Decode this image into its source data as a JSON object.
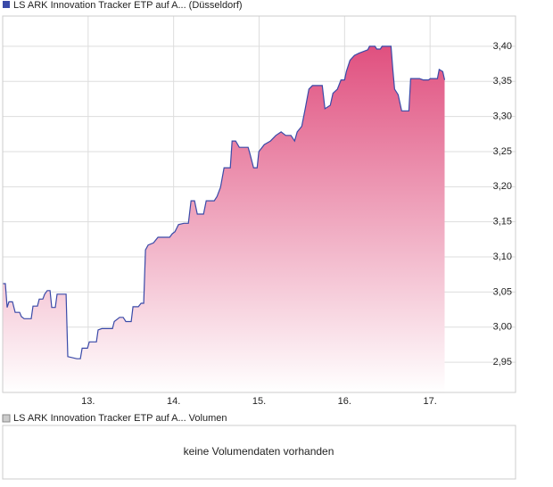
{
  "chart_data": {
    "type": "area",
    "xlim": [
      12,
      18
    ],
    "xticks": [
      {
        "value": 13,
        "label": "13."
      },
      {
        "value": 14,
        "label": "14."
      },
      {
        "value": 15,
        "label": "15."
      },
      {
        "value": 16,
        "label": "16."
      },
      {
        "value": 17,
        "label": "17."
      }
    ],
    "ylim": [
      2.907,
      3.443
    ],
    "yticks": [
      {
        "value": 2.95,
        "label": "2,95"
      },
      {
        "value": 3.0,
        "label": "3,00"
      },
      {
        "value": 3.05,
        "label": "3,05"
      },
      {
        "value": 3.1,
        "label": "3,10"
      },
      {
        "value": 3.15,
        "label": "3,15"
      },
      {
        "value": 3.2,
        "label": "3,20"
      },
      {
        "value": 3.25,
        "label": "3,25"
      },
      {
        "value": 3.3,
        "label": "3,30"
      },
      {
        "value": 3.35,
        "label": "3,35"
      },
      {
        "value": 3.4,
        "label": "3,40"
      }
    ],
    "grid": true,
    "x": [
      12.0,
      12.031,
      12.052,
      12.073,
      12.115,
      12.146,
      12.198,
      12.219,
      12.251,
      12.334,
      12.355,
      12.407,
      12.428,
      12.47,
      12.491,
      12.522,
      12.554,
      12.574,
      12.616,
      12.637,
      12.742,
      12.762,
      12.867,
      12.909,
      12.93,
      12.992,
      13.013,
      13.097,
      13.117,
      13.159,
      13.285,
      13.305,
      13.368,
      13.41,
      13.441,
      13.504,
      13.525,
      13.587,
      13.619,
      13.65,
      13.671,
      13.702,
      13.765,
      13.817,
      13.953,
      13.984,
      14.016,
      14.057,
      14.12,
      14.172,
      14.204,
      14.245,
      14.277,
      14.35,
      14.381,
      14.475,
      14.507,
      14.548,
      14.59,
      14.663,
      14.684,
      14.726,
      14.768,
      14.872,
      14.893,
      14.935,
      14.977,
      14.997,
      15.06,
      15.133,
      15.196,
      15.258,
      15.311,
      15.373,
      15.415,
      15.446,
      15.499,
      15.54,
      15.582,
      15.624,
      15.739,
      15.77,
      15.833,
      15.864,
      15.916,
      15.958,
      16.0,
      16.021,
      16.063,
      16.115,
      16.167,
      16.272,
      16.292,
      16.355,
      16.376,
      16.418,
      16.439,
      16.543,
      16.564,
      16.585,
      16.627,
      16.668,
      16.752,
      16.773,
      16.877,
      16.919,
      16.982,
      17.003,
      17.086,
      17.107,
      17.149,
      17.17
    ],
    "series": [
      {
        "name": "LS ARK Innovation Tracker ETP auf A... (Düsseldorf)",
        "color": "#3a4aa8",
        "values": [
          3.062,
          3.062,
          3.028,
          3.036,
          3.036,
          3.021,
          3.021,
          3.015,
          3.012,
          3.012,
          3.03,
          3.03,
          3.04,
          3.04,
          3.047,
          3.052,
          3.052,
          3.028,
          3.028,
          3.047,
          3.047,
          2.958,
          2.955,
          2.955,
          2.97,
          2.97,
          2.979,
          2.979,
          2.996,
          2.998,
          2.998,
          3.008,
          3.014,
          3.014,
          3.008,
          3.008,
          3.029,
          3.029,
          3.034,
          3.034,
          3.11,
          3.117,
          3.12,
          3.128,
          3.128,
          3.133,
          3.136,
          3.146,
          3.148,
          3.148,
          3.18,
          3.18,
          3.161,
          3.161,
          3.18,
          3.18,
          3.186,
          3.199,
          3.227,
          3.227,
          3.265,
          3.265,
          3.256,
          3.256,
          3.247,
          3.227,
          3.227,
          3.25,
          3.26,
          3.265,
          3.273,
          3.278,
          3.273,
          3.273,
          3.265,
          3.278,
          3.286,
          3.311,
          3.339,
          3.344,
          3.344,
          3.311,
          3.316,
          3.333,
          3.339,
          3.352,
          3.352,
          3.364,
          3.38,
          3.387,
          3.39,
          3.395,
          3.4,
          3.4,
          3.396,
          3.396,
          3.4,
          3.4,
          3.367,
          3.339,
          3.331,
          3.308,
          3.308,
          3.354,
          3.354,
          3.352,
          3.352,
          3.354,
          3.354,
          3.367,
          3.364,
          3.352
        ]
      }
    ]
  },
  "volume_panel": {
    "legend": "LS ARK Innovation Tracker ETP auf A... Volumen",
    "message": "keine Volumendaten vorhanden"
  }
}
